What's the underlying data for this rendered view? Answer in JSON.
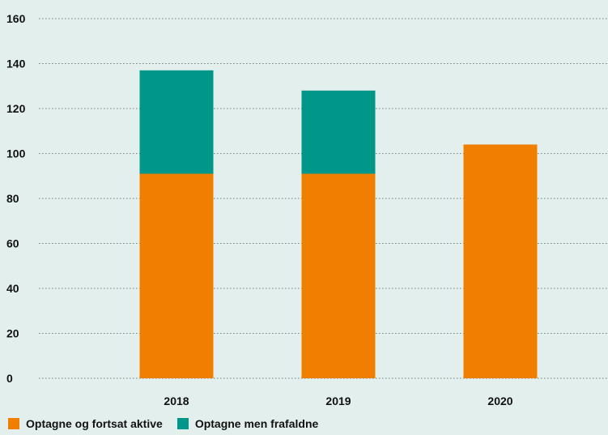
{
  "chart_data": {
    "type": "bar",
    "stacked": true,
    "categories": [
      "2018",
      "2019",
      "2020"
    ],
    "series": [
      {
        "name": "Optagne og fortsat aktive",
        "values": [
          91,
          91,
          104
        ],
        "color": "#f07f00"
      },
      {
        "name": "Optagne men frafaldne",
        "values": [
          46,
          37,
          0
        ],
        "color": "#00968a"
      }
    ],
    "title": "",
    "xlabel": "",
    "ylabel": "",
    "ylim": [
      0,
      160
    ],
    "yticks": [
      "0",
      "20",
      "40",
      "60",
      "80",
      "100",
      "120",
      "140",
      "160"
    ],
    "grid": "dotted-horizontal",
    "legend_position": "bottom-left"
  }
}
